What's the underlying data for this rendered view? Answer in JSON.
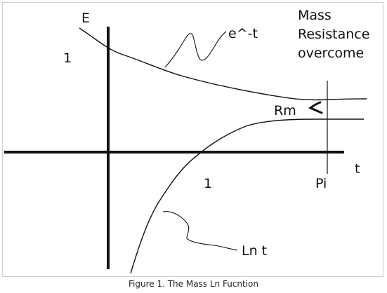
{
  "caption": "Figure 1. The Mass Ln Fucntion",
  "labels": {
    "e_axis": "E",
    "one_y": "1",
    "e_curve": "e^-t",
    "mass_line1": "Mass",
    "mass_line2": "Resistance",
    "mass_line3": "overcome",
    "rm": "Rm",
    "t_axis": "t",
    "one_x": "1",
    "pi": "Pi",
    "ln_curve": "Ln t"
  },
  "colors": {
    "ink": "#111111",
    "border": "#cfcfcf"
  }
}
